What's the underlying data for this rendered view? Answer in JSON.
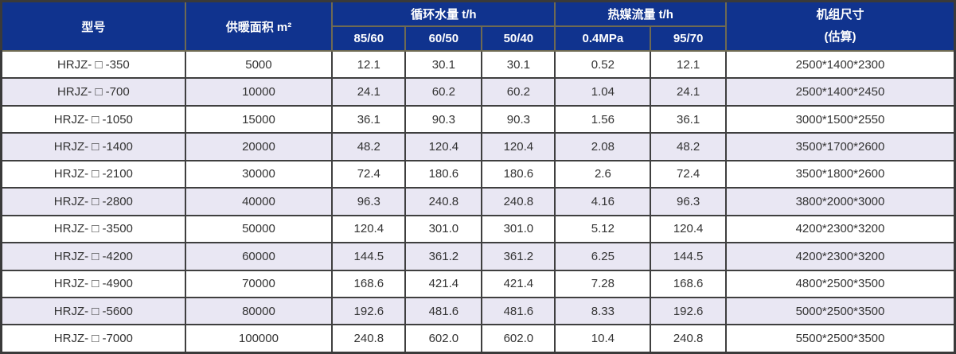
{
  "table": {
    "headers": {
      "model": "型号",
      "heating_area": "供暖面积 m²",
      "circulating_water_group": "循环水量 t/h",
      "heat_medium_group": "热媒流量 t/h",
      "unit_size_line1": "机组尺寸",
      "unit_size_line2": "(估算)",
      "sub_85_60": "85/60",
      "sub_60_50": "60/50",
      "sub_50_40": "50/40",
      "sub_04mpa": "0.4MPa",
      "sub_95_70": "95/70"
    },
    "rows": [
      [
        "HRJZ- □ -350",
        "5000",
        "12.1",
        "30.1",
        "30.1",
        "0.52",
        "12.1",
        "2500*1400*2300"
      ],
      [
        "HRJZ- □ -700",
        "10000",
        "24.1",
        "60.2",
        "60.2",
        "1.04",
        "24.1",
        "2500*1400*2450"
      ],
      [
        "HRJZ- □ -1050",
        "15000",
        "36.1",
        "90.3",
        "90.3",
        "1.56",
        "36.1",
        "3000*1500*2550"
      ],
      [
        "HRJZ- □ -1400",
        "20000",
        "48.2",
        "120.4",
        "120.4",
        "2.08",
        "48.2",
        "3500*1700*2600"
      ],
      [
        "HRJZ- □ -2100",
        "30000",
        "72.4",
        "180.6",
        "180.6",
        "2.6",
        "72.4",
        "3500*1800*2600"
      ],
      [
        "HRJZ- □ -2800",
        "40000",
        "96.3",
        "240.8",
        "240.8",
        "4.16",
        "96.3",
        "3800*2000*3000"
      ],
      [
        "HRJZ- □ -3500",
        "50000",
        "120.4",
        "301.0",
        "301.0",
        "5.12",
        "120.4",
        "4200*2300*3200"
      ],
      [
        "HRJZ- □ -4200",
        "60000",
        "144.5",
        "361.2",
        "361.2",
        "6.25",
        "144.5",
        "4200*2300*3200"
      ],
      [
        "HRJZ- □ -4900",
        "70000",
        "168.6",
        "421.4",
        "421.4",
        "7.28",
        "168.6",
        "4800*2500*3500"
      ],
      [
        "HRJZ- □ -5600",
        "80000",
        "192.6",
        "481.6",
        "481.6",
        "8.33",
        "192.6",
        "5000*2500*3500"
      ],
      [
        "HRJZ- □ -7000",
        "100000",
        "240.8",
        "602.0",
        "602.0",
        "10.4",
        "240.8",
        "5500*2500*3500"
      ]
    ]
  },
  "colors": {
    "header_bg": "#10338E",
    "header_text": "#FFFFFF",
    "header_border": "#6F6A52",
    "body_border": "#3F3F3F",
    "row_bg": "#FFFFFF",
    "row_alt_bg": "#E9E7F3",
    "body_text": "#333333"
  }
}
